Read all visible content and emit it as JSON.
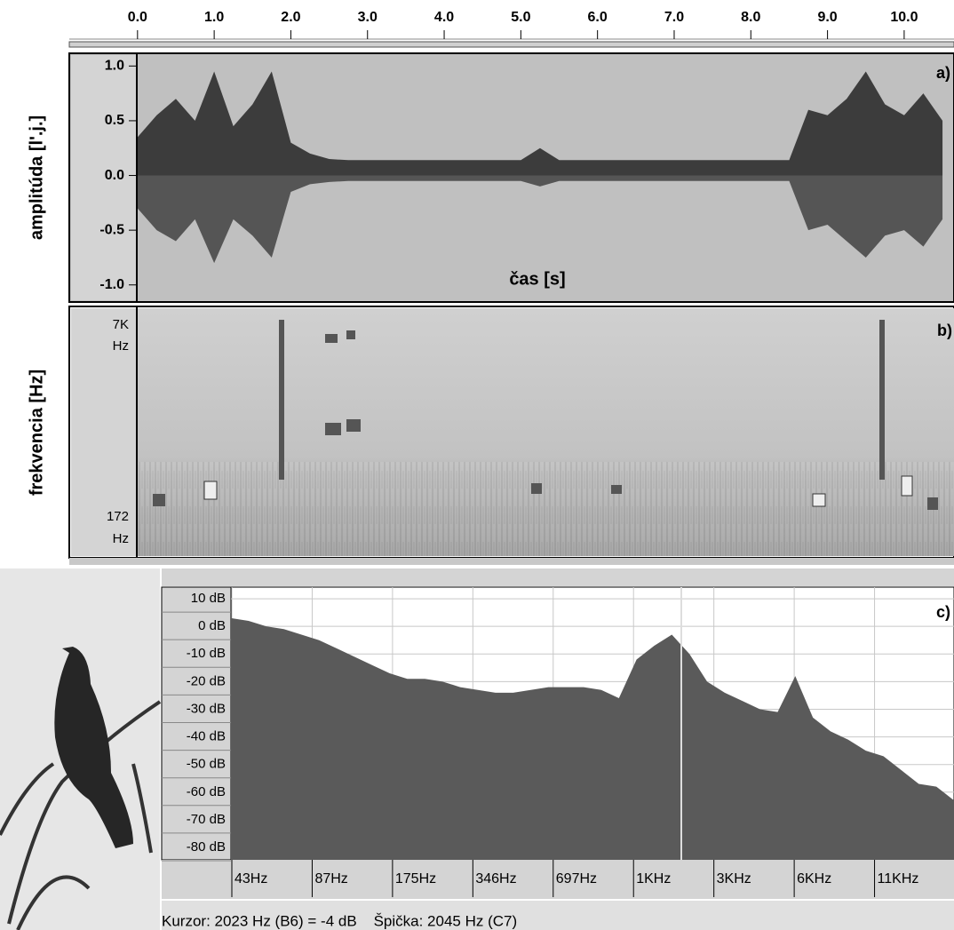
{
  "ruler": {
    "xlim": [
      -0.89,
      10.65
    ],
    "ticks": [
      {
        "value": 0,
        "label": "0.0"
      },
      {
        "value": 1,
        "label": "1.0"
      },
      {
        "value": 2,
        "label": "2.0"
      },
      {
        "value": 3,
        "label": "3.0"
      },
      {
        "value": 4,
        "label": "4.0"
      },
      {
        "value": 5,
        "label": "5.0"
      },
      {
        "value": 6,
        "label": "6.0"
      },
      {
        "value": 7,
        "label": "7.0"
      },
      {
        "value": 8,
        "label": "8.0"
      },
      {
        "value": 9,
        "label": "9.0"
      },
      {
        "value": 10,
        "label": "10.0"
      }
    ]
  },
  "waveform": {
    "label": "amplitúda [l'.j.]",
    "tag": "a)",
    "xlabel": "čas [s]",
    "ylim": [
      -1.14,
      1.1
    ],
    "yticks": [
      {
        "value": 1,
        "label": "1.0"
      },
      {
        "value": 0.5,
        "label": "0.5"
      },
      {
        "value": 0,
        "label": "0.0"
      },
      {
        "value": -0.5,
        "label": "-0.5"
      },
      {
        "value": -1,
        "label": "-1.0"
      }
    ],
    "x": [
      0,
      0.25,
      0.5,
      0.75,
      1,
      1.25,
      1.5,
      1.75,
      2,
      2.25,
      2.5,
      2.75,
      3,
      3.25,
      3.5,
      3.75,
      4,
      4.25,
      4.5,
      4.75,
      5,
      5.25,
      5.5,
      5.75,
      6,
      6.25,
      6.5,
      6.75,
      7,
      7.25,
      7.5,
      7.75,
      8,
      8.25,
      8.5,
      8.75,
      9,
      9.25,
      9.5,
      9.75,
      10,
      10.25,
      10.5
    ],
    "upper": [
      0.35,
      0.55,
      0.7,
      0.5,
      0.95,
      0.45,
      0.65,
      0.95,
      0.3,
      0.2,
      0.15,
      0.14,
      0.14,
      0.14,
      0.14,
      0.14,
      0.14,
      0.14,
      0.14,
      0.14,
      0.14,
      0.25,
      0.14,
      0.14,
      0.14,
      0.14,
      0.14,
      0.14,
      0.14,
      0.14,
      0.14,
      0.14,
      0.14,
      0.14,
      0.14,
      0.6,
      0.55,
      0.7,
      0.95,
      0.65,
      0.55,
      0.75,
      0.5
    ],
    "lower": [
      -0.3,
      -0.5,
      -0.6,
      -0.4,
      -0.8,
      -0.4,
      -0.55,
      -0.75,
      -0.15,
      -0.08,
      -0.06,
      -0.05,
      -0.05,
      -0.05,
      -0.05,
      -0.05,
      -0.05,
      -0.05,
      -0.05,
      -0.05,
      -0.05,
      -0.1,
      -0.05,
      -0.05,
      -0.05,
      -0.05,
      -0.05,
      -0.05,
      -0.05,
      -0.05,
      -0.05,
      -0.05,
      -0.05,
      -0.05,
      -0.05,
      -0.5,
      -0.45,
      -0.6,
      -0.75,
      -0.55,
      -0.5,
      -0.65,
      -0.4
    ]
  },
  "spectrogram": {
    "label": "frekvencia [Hz]",
    "tag": "b)",
    "top_tick": [
      "7K",
      "Hz"
    ],
    "bottom_tick": [
      "172",
      "Hz"
    ]
  },
  "spectrum": {
    "tag": "c)",
    "ylim": [
      -84.5,
      14.2
    ],
    "yticks": [
      {
        "value": 10,
        "label": "10 dB"
      },
      {
        "value": 0,
        "label": "0 dB"
      },
      {
        "value": -10,
        "label": "-10 dB"
      },
      {
        "value": -20,
        "label": "-20 dB"
      },
      {
        "value": -30,
        "label": "-30 dB"
      },
      {
        "value": -40,
        "label": "-40 dB"
      },
      {
        "value": -50,
        "label": "-50 dB"
      },
      {
        "value": -60,
        "label": "-60 dB"
      },
      {
        "value": -70,
        "label": "-70 dB"
      },
      {
        "value": -80,
        "label": "-80 dB"
      }
    ],
    "xticks": [
      "43Hz",
      "87Hz",
      "175Hz",
      "346Hz",
      "697Hz",
      "1KHz",
      "3KHz",
      "6KHz",
      "11KHz"
    ],
    "values": [
      3,
      2,
      0,
      -1,
      -3,
      -5,
      -8,
      -11,
      -14,
      -17,
      -19,
      -19,
      -20,
      -22,
      -23,
      -24,
      -24,
      -23,
      -22,
      -22,
      -22,
      -23,
      -26,
      -12,
      -7,
      -3,
      -10,
      -20,
      -24,
      -27,
      -30,
      -31,
      -18,
      -33,
      -38,
      -41,
      -45,
      -47,
      -52,
      -57,
      -58,
      -63
    ]
  },
  "status": "Kurzor: 2023 Hz (B6) = -4 dB    Špička: 2045 Hz (C7)"
}
